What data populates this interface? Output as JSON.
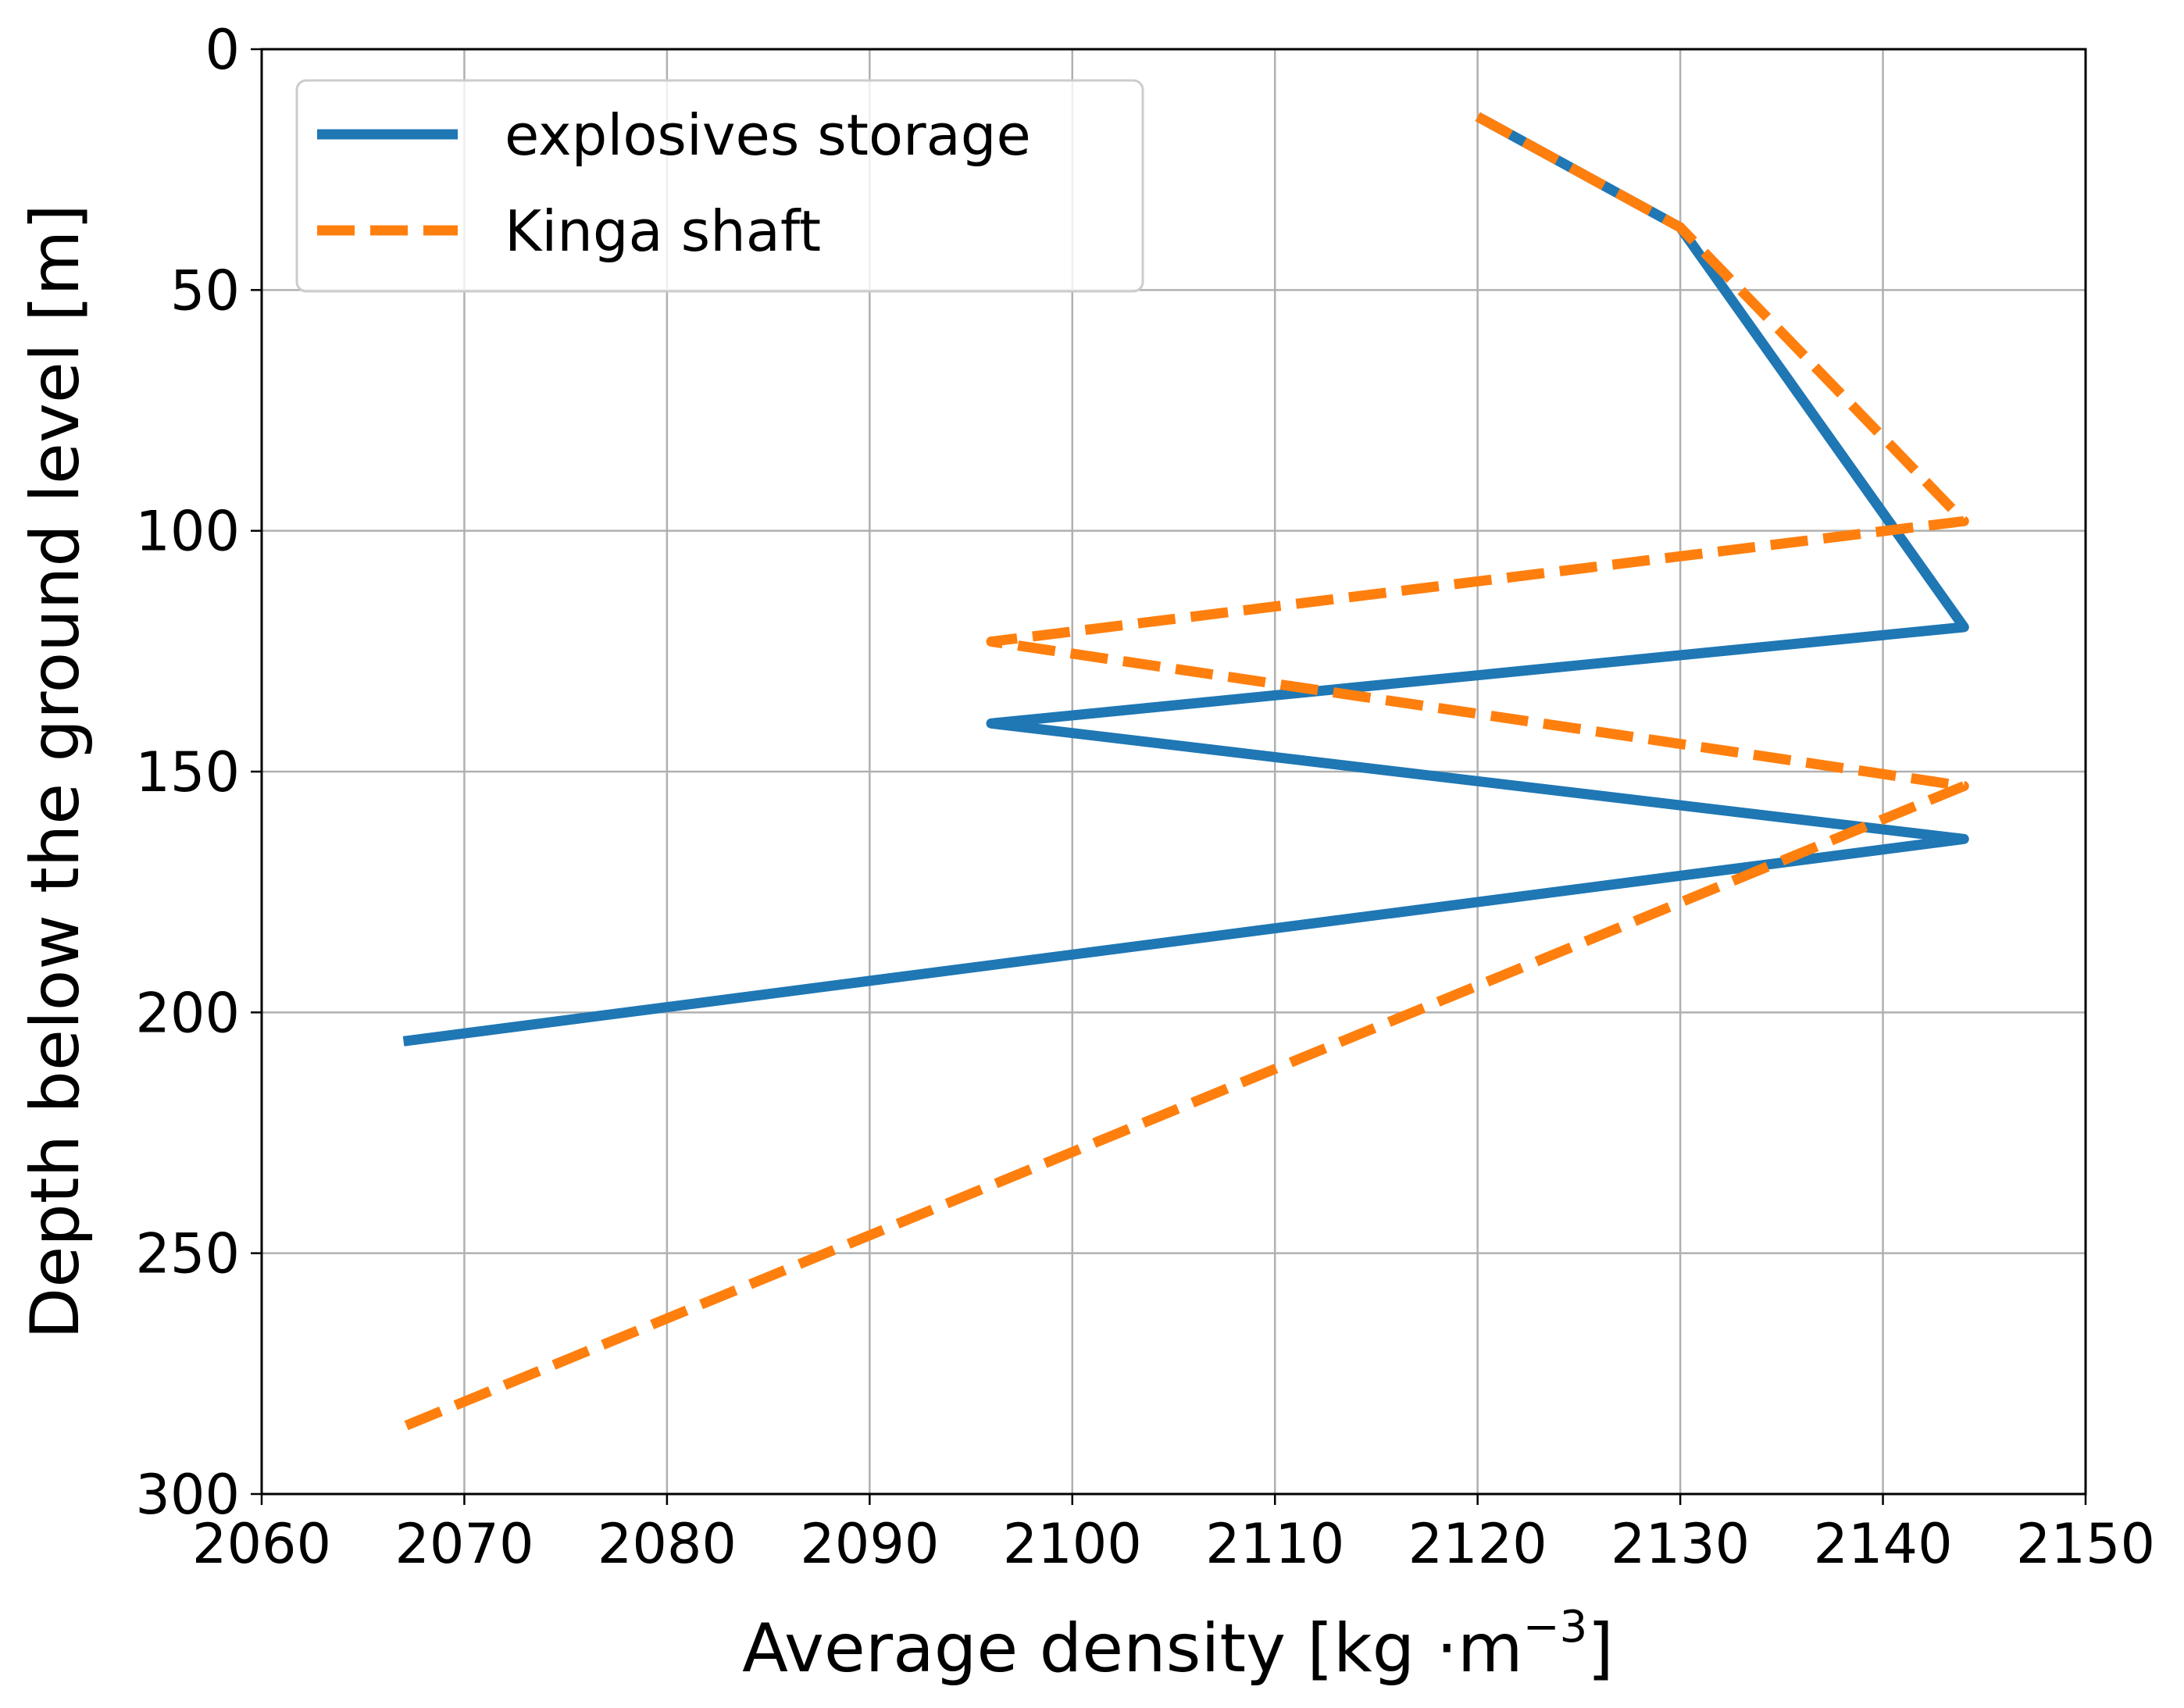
{
  "chart_data": {
    "type": "line",
    "xlabel": "Average density [kg ·m",
    "xlabel_superscript": "−3",
    "xlabel_suffix": "]",
    "ylabel": "Depth below the ground level [m]",
    "xlim": [
      2060,
      2150
    ],
    "ylim": [
      300,
      0
    ],
    "y_inverted": true,
    "x_ticks": [
      2060,
      2070,
      2080,
      2090,
      2100,
      2110,
      2120,
      2130,
      2140,
      2150
    ],
    "y_ticks": [
      0,
      50,
      100,
      150,
      200,
      250,
      300
    ],
    "grid": true,
    "legend_position": "top-left",
    "series": [
      {
        "name": "explosives storage",
        "color": "#1f77b4",
        "style": "solid",
        "x": [
          2120,
          2130,
          2144,
          2096,
          2144,
          2067
        ],
        "y": [
          14,
          37,
          120,
          140,
          164,
          206
        ]
      },
      {
        "name": "Kinga shaft",
        "color": "#ff7f0e",
        "style": "dashed",
        "x": [
          2120,
          2130,
          2144,
          2096,
          2144,
          2067
        ],
        "y": [
          14,
          37,
          98,
          123,
          153,
          286
        ]
      }
    ]
  }
}
